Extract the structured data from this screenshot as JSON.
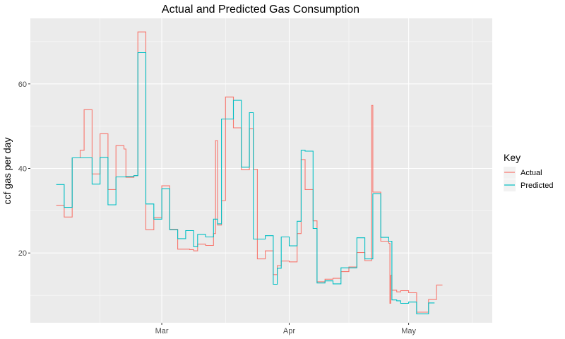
{
  "chart_data": {
    "type": "line",
    "title": "Actual and Predicted Gas Consumption",
    "xlabel": "",
    "ylabel": "ccf gas per day",
    "x_range_day": [
      0,
      116
    ],
    "ylim": [
      3.5,
      75.5
    ],
    "x_ticks": [
      {
        "label": "Mar",
        "day": 33
      },
      {
        "label": "Apr",
        "day": 65
      },
      {
        "label": "May",
        "day": 95
      }
    ],
    "x_minor_days": [
      17.5,
      49,
      80,
      111
    ],
    "y_ticks": [
      20,
      40,
      60
    ],
    "y_minor": [
      10,
      30,
      50,
      70
    ],
    "legend": {
      "title": "Key",
      "position": "right"
    },
    "colors": {
      "background": "#ebebeb",
      "grid": "#ffffff",
      "actual": "#f8766d",
      "predicted": "#00bfc4"
    },
    "series": [
      {
        "name": "Actual",
        "points": [
          [
            6.5,
            31.3
          ],
          [
            8.5,
            28.5
          ],
          [
            10.5,
            42.5
          ],
          [
            12.5,
            44.3
          ],
          [
            13.5,
            53.9
          ],
          [
            15.5,
            38.7
          ],
          [
            17.5,
            48.2
          ],
          [
            19.5,
            35.0
          ],
          [
            21.5,
            45.4
          ],
          [
            23.5,
            44.6
          ],
          [
            24,
            37.9
          ],
          [
            26,
            38.3
          ],
          [
            27,
            72.3
          ],
          [
            29,
            25.5
          ],
          [
            31,
            28.4
          ],
          [
            33,
            35.9
          ],
          [
            35,
            25.6
          ],
          [
            37,
            20.9
          ],
          [
            40,
            20.8
          ],
          [
            41,
            20.5
          ],
          [
            42,
            22.1
          ],
          [
            44,
            21.8
          ],
          [
            46,
            24.6
          ],
          [
            46.5,
            46.6
          ],
          [
            47,
            26.6
          ],
          [
            48,
            32.4
          ],
          [
            49,
            56.9
          ],
          [
            51,
            49.6
          ],
          [
            53,
            39.7
          ],
          [
            55,
            49.4
          ],
          [
            56,
            39.8
          ],
          [
            57,
            18.6
          ],
          [
            59,
            20.5
          ],
          [
            61,
            14.9
          ],
          [
            62,
            17.0
          ],
          [
            63,
            18.1
          ],
          [
            65,
            17.9
          ],
          [
            67,
            24.6
          ],
          [
            68,
            42.1
          ],
          [
            69,
            35.0
          ],
          [
            71,
            27.6
          ],
          [
            72,
            13.2
          ],
          [
            74,
            13.8
          ],
          [
            76,
            14.0
          ],
          [
            78,
            15.6
          ],
          [
            80,
            16.7
          ],
          [
            82,
            20.1
          ],
          [
            84,
            18.2
          ],
          [
            85.7,
            54.9
          ],
          [
            86,
            34.4
          ],
          [
            88,
            22.8
          ],
          [
            90,
            22.3
          ],
          [
            90.3,
            8.1
          ],
          [
            90.5,
            14.7
          ],
          [
            90.8,
            11.2
          ],
          [
            92,
            10.8
          ],
          [
            93,
            11.1
          ],
          [
            95,
            10.6
          ],
          [
            97,
            6.0
          ],
          [
            100,
            9.0
          ],
          [
            102,
            12.4
          ],
          [
            103.5,
            12.4
          ]
        ]
      },
      {
        "name": "Predicted",
        "points": [
          [
            6.5,
            36.2
          ],
          [
            8.5,
            30.8
          ],
          [
            10.5,
            42.5
          ],
          [
            15.5,
            36.3
          ],
          [
            17.5,
            42.6
          ],
          [
            19.5,
            31.4
          ],
          [
            21.5,
            38.0
          ],
          [
            24,
            38.1
          ],
          [
            26,
            38.3
          ],
          [
            27,
            67.4
          ],
          [
            29,
            31.6
          ],
          [
            31,
            28.0
          ],
          [
            33,
            35.2
          ],
          [
            35,
            25.5
          ],
          [
            37,
            23.4
          ],
          [
            39,
            25.3
          ],
          [
            41,
            21.5
          ],
          [
            42,
            24.4
          ],
          [
            44,
            23.8
          ],
          [
            46,
            28.0
          ],
          [
            47,
            26.9
          ],
          [
            48,
            51.7
          ],
          [
            51,
            56.1
          ],
          [
            53,
            40.3
          ],
          [
            55,
            53.2
          ],
          [
            56,
            23.3
          ],
          [
            59,
            24.1
          ],
          [
            61,
            12.6
          ],
          [
            62,
            16.4
          ],
          [
            63,
            23.8
          ],
          [
            65,
            21.7
          ],
          [
            67,
            27.5
          ],
          [
            68,
            44.3
          ],
          [
            69,
            44.1
          ],
          [
            71,
            25.8
          ],
          [
            72,
            12.9
          ],
          [
            74,
            13.4
          ],
          [
            76,
            12.7
          ],
          [
            78,
            16.5
          ],
          [
            80,
            16.5
          ],
          [
            82,
            23.6
          ],
          [
            84,
            18.6
          ],
          [
            86,
            34.0
          ],
          [
            88,
            23.7
          ],
          [
            90,
            22.8
          ],
          [
            90.8,
            8.9
          ],
          [
            92,
            8.7
          ],
          [
            93,
            8.1
          ],
          [
            95,
            8.4
          ],
          [
            97,
            5.6
          ],
          [
            100,
            8.2
          ],
          [
            101.5,
            8.2
          ]
        ]
      }
    ]
  }
}
